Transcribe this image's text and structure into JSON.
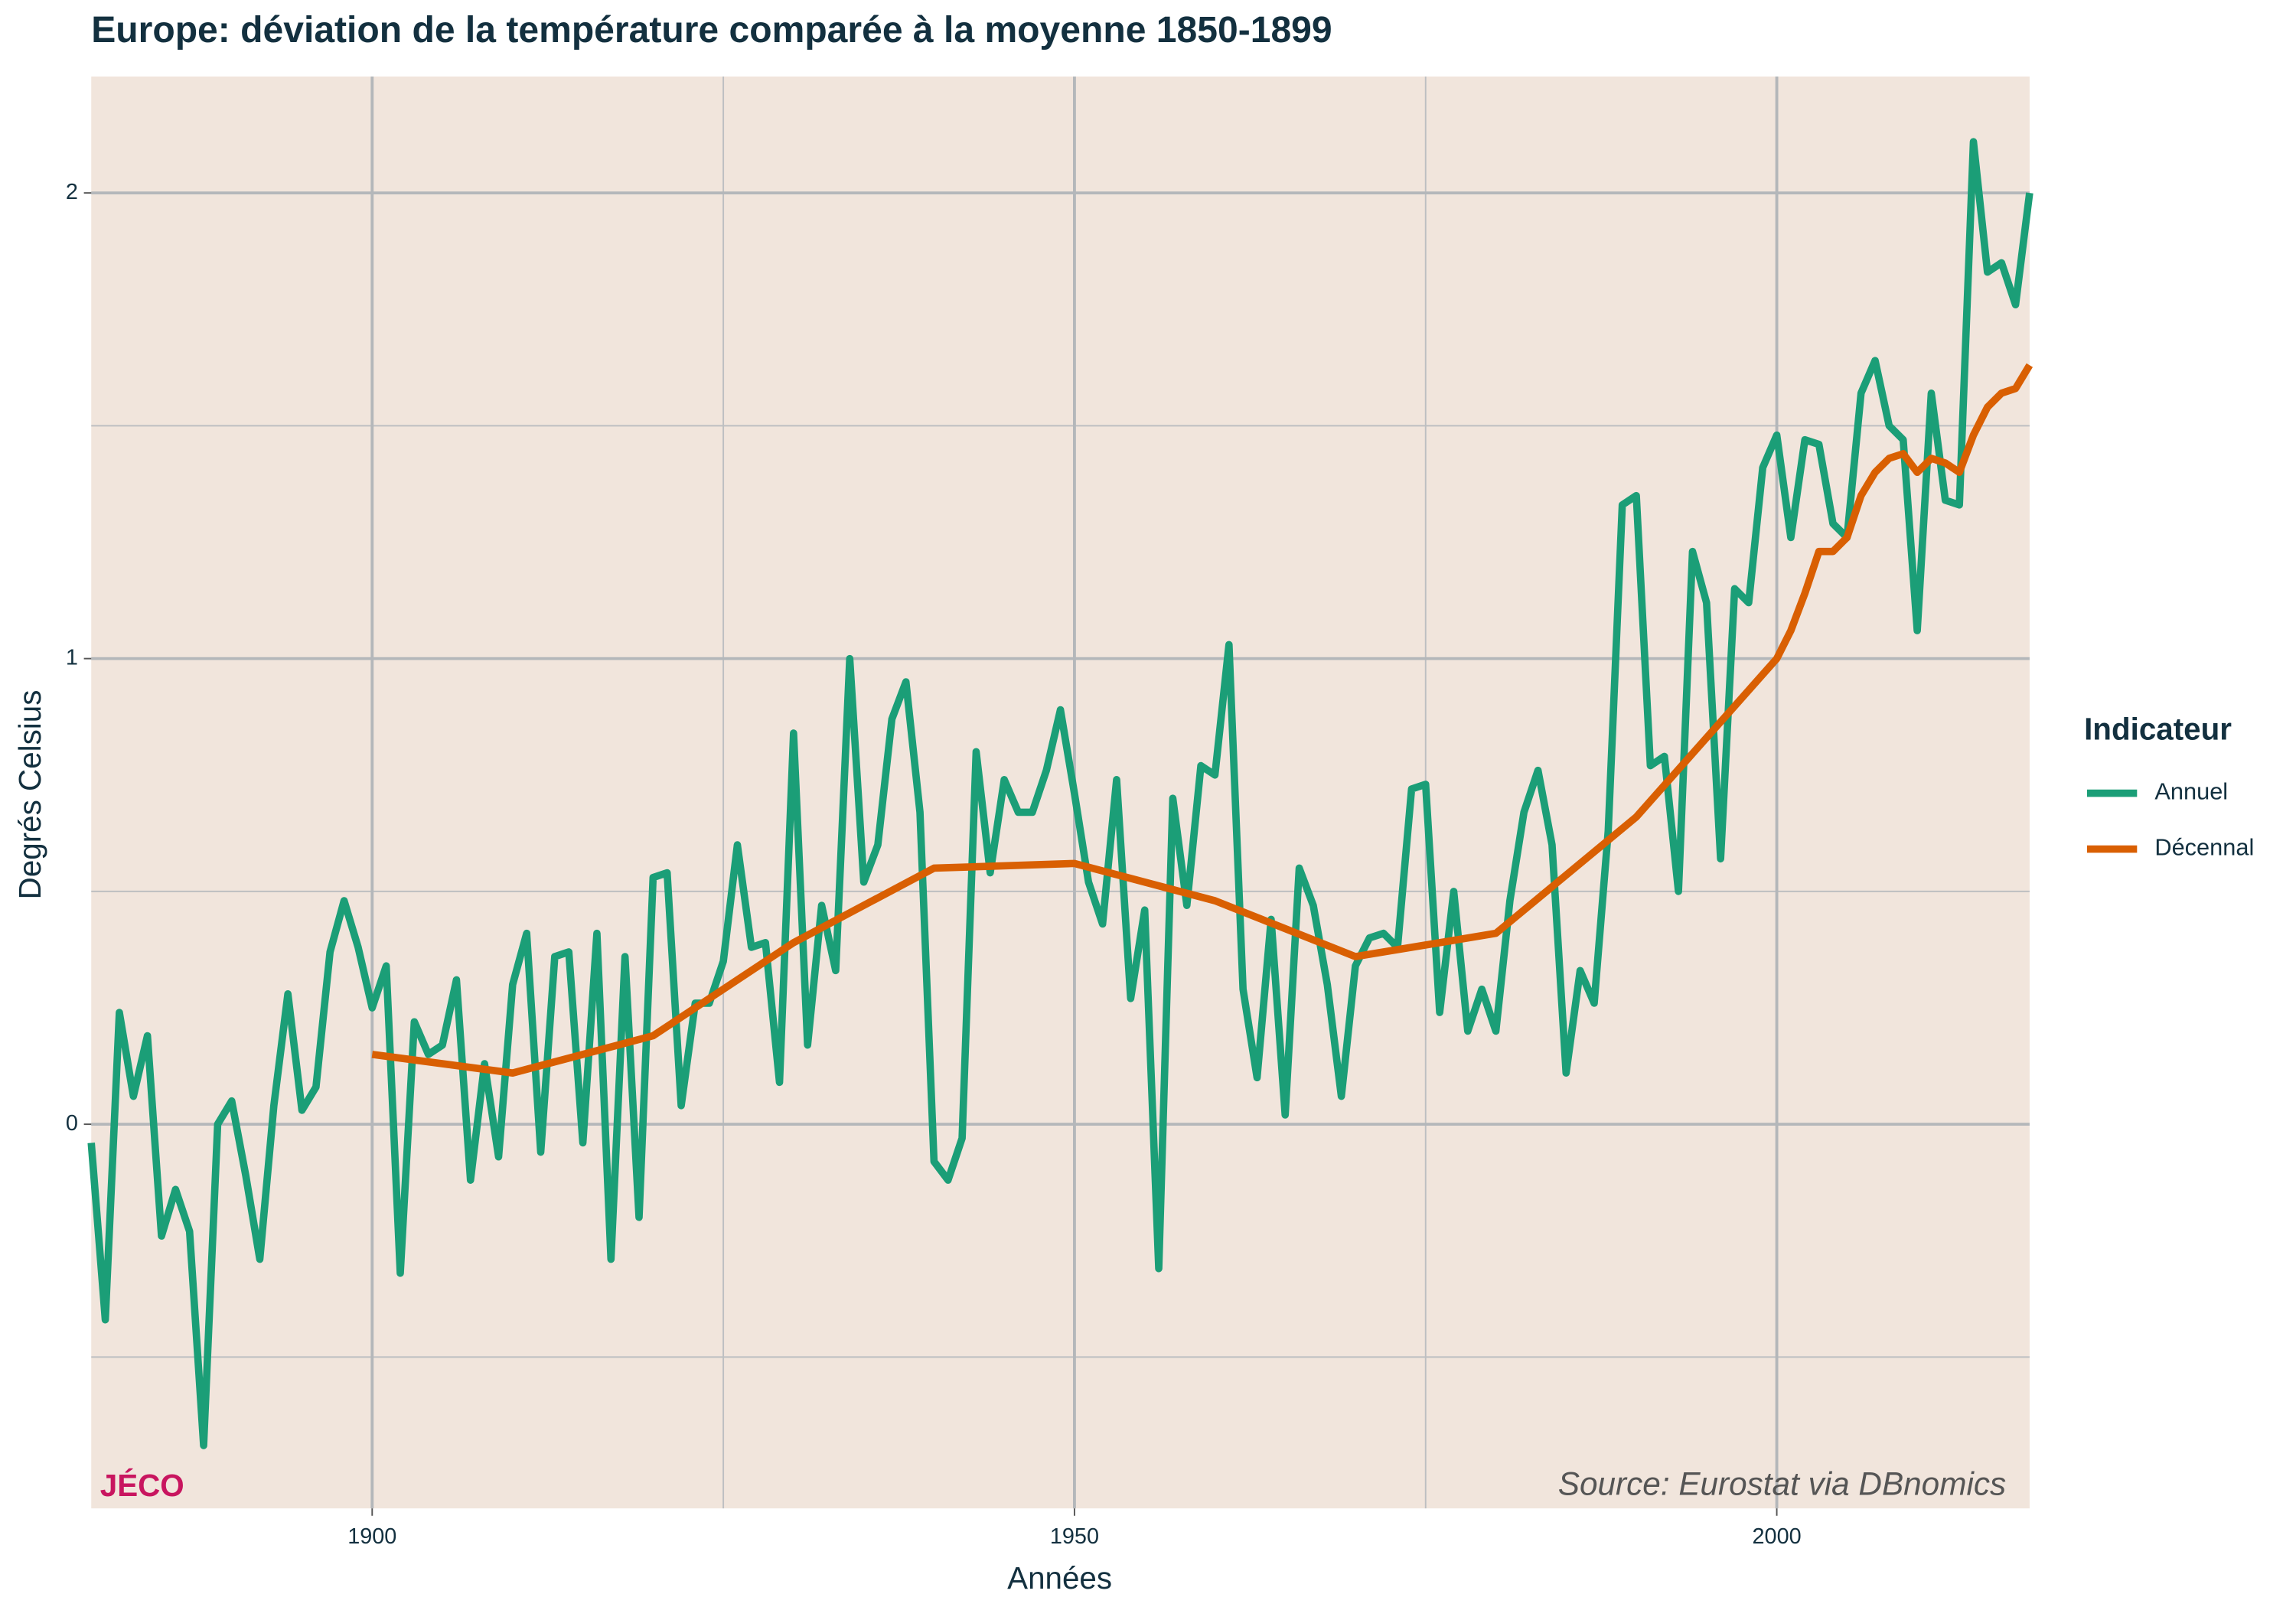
{
  "chart_data": {
    "type": "line",
    "title": "Europe: déviation de la température comparée à la moyenne 1850-1899",
    "xlabel": "Années",
    "ylabel": "Degrés Celsius",
    "legend_title": "Indicateur",
    "legend_position": "right",
    "annotations": [
      "JÉCO",
      "Source: Eurostat via DBnomics"
    ],
    "xlim": [
      1880,
      2018
    ],
    "xticks": [
      1900,
      1950,
      2000
    ],
    "xminor": [
      1925,
      1975
    ],
    "ylim": [
      -0.825,
      2.25
    ],
    "yticks": [
      0,
      1,
      2
    ],
    "yminor": [
      -0.5,
      0.5,
      1.5
    ],
    "grid": true,
    "background": "#f1e5dc",
    "series": [
      {
        "name": "Annuel",
        "color": "#1b9e77",
        "x": [
          1880,
          1881,
          1882,
          1883,
          1884,
          1885,
          1886,
          1887,
          1888,
          1889,
          1890,
          1891,
          1892,
          1893,
          1894,
          1895,
          1896,
          1897,
          1898,
          1899,
          1900,
          1901,
          1902,
          1903,
          1904,
          1905,
          1906,
          1907,
          1908,
          1909,
          1910,
          1911,
          1912,
          1913,
          1914,
          1915,
          1916,
          1917,
          1918,
          1919,
          1920,
          1921,
          1922,
          1923,
          1924,
          1925,
          1926,
          1927,
          1928,
          1929,
          1930,
          1931,
          1932,
          1933,
          1934,
          1935,
          1936,
          1937,
          1938,
          1939,
          1940,
          1941,
          1942,
          1943,
          1944,
          1945,
          1946,
          1947,
          1948,
          1949,
          1950,
          1951,
          1952,
          1953,
          1954,
          1955,
          1956,
          1957,
          1958,
          1959,
          1960,
          1961,
          1962,
          1963,
          1964,
          1965,
          1966,
          1967,
          1968,
          1969,
          1970,
          1971,
          1972,
          1973,
          1974,
          1975,
          1976,
          1977,
          1978,
          1979,
          1980,
          1981,
          1982,
          1983,
          1984,
          1985,
          1986,
          1987,
          1988,
          1989,
          1990,
          1991,
          1992,
          1993,
          1994,
          1995,
          1996,
          1997,
          1998,
          1999,
          2000,
          2001,
          2002,
          2003,
          2004,
          2005,
          2006,
          2007,
          2008,
          2009,
          2010,
          2011,
          2012,
          2013,
          2014,
          2015,
          2016,
          2017,
          2018
        ],
        "values": [
          -0.04,
          -0.42,
          0.24,
          0.06,
          0.19,
          -0.24,
          -0.14,
          -0.23,
          -0.69,
          0.0,
          0.05,
          -0.11,
          -0.29,
          0.04,
          0.28,
          0.03,
          0.08,
          0.37,
          0.48,
          0.38,
          0.25,
          0.34,
          -0.32,
          0.22,
          0.15,
          0.17,
          0.31,
          -0.12,
          0.13,
          -0.07,
          0.3,
          0.41,
          -0.06,
          0.36,
          0.37,
          -0.04,
          0.41,
          -0.29,
          0.36,
          -0.2,
          0.53,
          0.54,
          0.04,
          0.26,
          0.26,
          0.35,
          0.6,
          0.38,
          0.39,
          0.09,
          0.84,
          0.17,
          0.47,
          0.33,
          1.0,
          0.52,
          0.6,
          0.87,
          0.95,
          0.67,
          -0.08,
          -0.12,
          -0.03,
          0.8,
          0.54,
          0.74,
          0.67,
          0.67,
          0.76,
          0.89,
          0.71,
          0.52,
          0.43,
          0.74,
          0.27,
          0.46,
          -0.31,
          0.7,
          0.47,
          0.77,
          0.75,
          1.03,
          0.29,
          0.1,
          0.44,
          0.02,
          0.55,
          0.47,
          0.3,
          0.06,
          0.34,
          0.4,
          0.41,
          0.38,
          0.72,
          0.73,
          0.24,
          0.5,
          0.2,
          0.29,
          0.2,
          0.48,
          0.67,
          0.76,
          0.6,
          0.11,
          0.33,
          0.26,
          0.63,
          1.33,
          1.35,
          0.77,
          0.79,
          0.5,
          1.23,
          1.12,
          0.57,
          1.15,
          1.12,
          1.41,
          1.48,
          1.26,
          1.47,
          1.46,
          1.29,
          1.26,
          1.57,
          1.64,
          1.5,
          1.47,
          1.06,
          1.57,
          1.34,
          1.33,
          2.11,
          1.83,
          1.85,
          1.76,
          2.0
        ]
      },
      {
        "name": "Décennal",
        "color": "#d95f02",
        "x": [
          1900,
          1910,
          1920,
          1930,
          1940,
          1950,
          1960,
          1970,
          1980,
          1990,
          2000,
          2001,
          2002,
          2003,
          2004,
          2005,
          2006,
          2007,
          2008,
          2009,
          2010,
          2011,
          2012,
          2013,
          2014,
          2015,
          2016,
          2017,
          2018
        ],
        "values": [
          0.15,
          0.11,
          0.19,
          0.39,
          0.55,
          0.56,
          0.48,
          0.36,
          0.41,
          0.66,
          1.0,
          1.06,
          1.14,
          1.23,
          1.23,
          1.26,
          1.35,
          1.4,
          1.43,
          1.44,
          1.4,
          1.43,
          1.42,
          1.4,
          1.48,
          1.54,
          1.57,
          1.58,
          1.63
        ]
      }
    ]
  }
}
